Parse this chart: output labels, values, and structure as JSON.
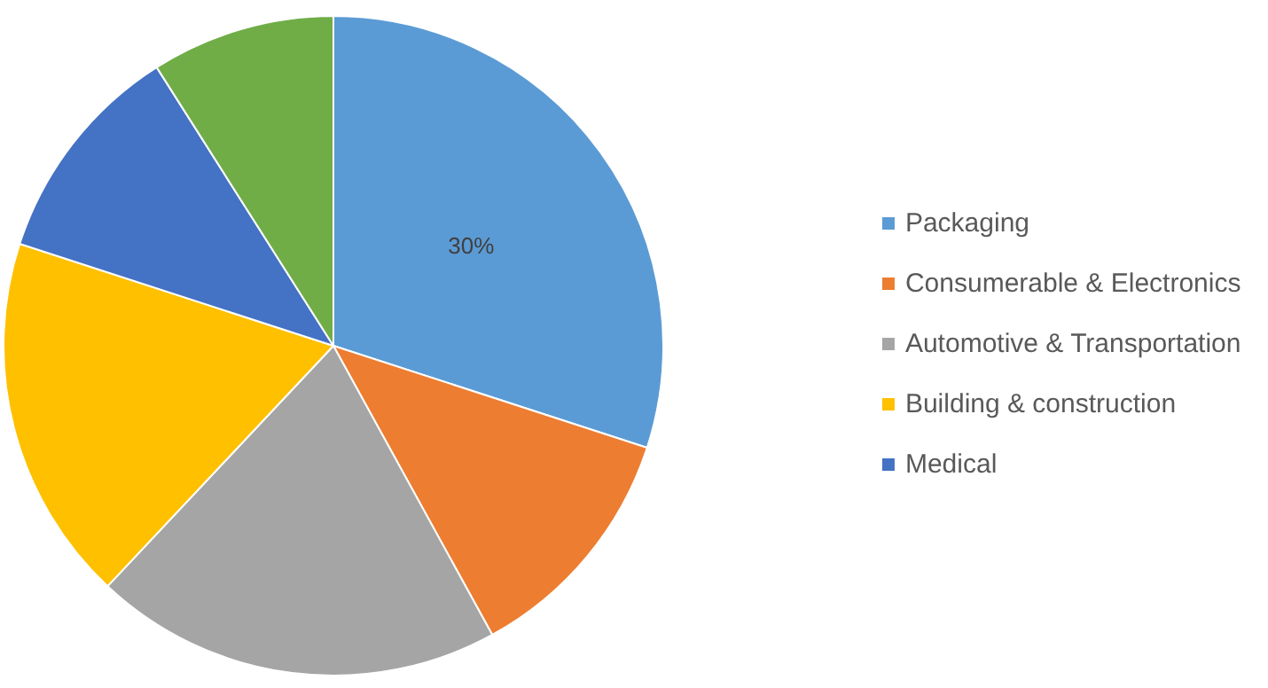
{
  "chart_data": {
    "type": "pie",
    "categories": [
      "Packaging",
      "Consumerable & Electronics",
      "Automotive & Transportation",
      "Building & construction",
      "Medical",
      null
    ],
    "values": [
      30,
      12,
      20,
      18,
      11,
      9
    ],
    "colors": [
      "#5b9bd5",
      "#ed7d31",
      "#a5a5a5",
      "#ffc000",
      "#4472c4",
      "#70ad47"
    ],
    "value_labels": [
      "30%",
      null,
      null,
      null,
      null,
      null
    ],
    "legend": "right"
  }
}
